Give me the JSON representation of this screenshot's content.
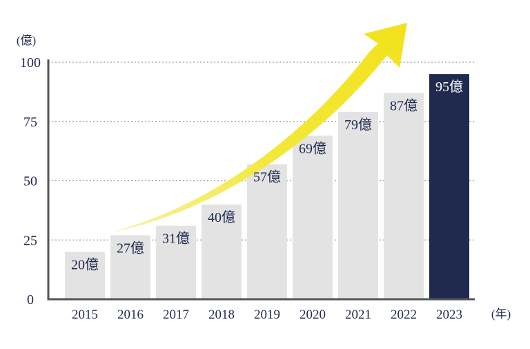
{
  "chart_data": {
    "type": "bar",
    "categories": [
      "2015",
      "2016",
      "2017",
      "2018",
      "2019",
      "2020",
      "2021",
      "2022",
      "2023"
    ],
    "values": [
      20,
      27,
      31,
      40,
      57,
      69,
      79,
      87,
      95
    ],
    "data_labels": [
      "20億",
      "27億",
      "31億",
      "40億",
      "57億",
      "69億",
      "79億",
      "87億",
      "95億"
    ],
    "y_unit_label": "(億)",
    "x_unit_label": "(年)",
    "ylim": [
      0,
      100
    ],
    "yticks": [
      0,
      25,
      50,
      75,
      100
    ],
    "grid": "dotted horizontal lines at 25, 50, 75, 100",
    "highlight_index": 8,
    "colors": {
      "bar": "#e3e3e3",
      "highlight_bar": "#1f2a4e",
      "label_text": "#1f2a4e",
      "highlight_label_text": "#ffffff",
      "axis": "#555555",
      "grid": "#9a9a9a",
      "arrow": "#f5ea36"
    },
    "annotation": "yellow upward growth arrow"
  }
}
